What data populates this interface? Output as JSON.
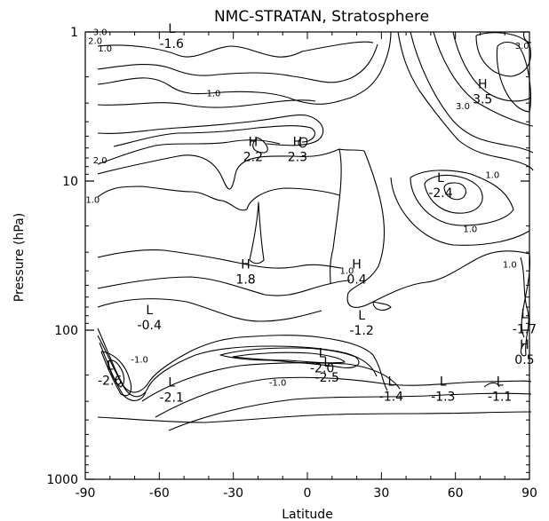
{
  "chart_data": {
    "type": "contour",
    "title": "NMC-STRATAN, Stratosphere",
    "xlabel": "Latitude",
    "ylabel": "Pressure (hPa)",
    "xlim": [
      -90,
      90
    ],
    "ylim": [
      1000,
      1
    ],
    "yscale": "log",
    "x_ticks": [
      -90,
      -60,
      -30,
      0,
      30,
      60,
      90
    ],
    "y_ticks": [
      1,
      10,
      100,
      1000
    ],
    "y_tick_labels": [
      "1",
      "10",
      "100",
      "1000"
    ],
    "extrema": [
      {
        "type": "L",
        "value": "-1.6",
        "lat": -55,
        "p": 1.1
      },
      {
        "type": "H",
        "value": "2.2",
        "lat": -22,
        "p": 6.3
      },
      {
        "type": "H",
        "value": "2.3",
        "lat": -4,
        "p": 6.3
      },
      {
        "type": "H",
        "value": "3.5",
        "lat": 71,
        "p": 2.6
      },
      {
        "type": "L",
        "value": "-2.4",
        "lat": 54,
        "p": 11
      },
      {
        "type": "H",
        "value": "1.8",
        "lat": -25,
        "p": 42
      },
      {
        "type": "H",
        "value": "0.4",
        "lat": 20,
        "p": 42
      },
      {
        "type": "L",
        "value": "-0.4",
        "lat": -64,
        "p": 85
      },
      {
        "type": "L",
        "value": "-1.2",
        "lat": 22,
        "p": 92
      },
      {
        "type": "L",
        "value": "-1.7",
        "lat": 88,
        "p": 90
      },
      {
        "type": "H",
        "value": "0.5",
        "lat": 88,
        "p": 145
      },
      {
        "type": "L",
        "value": "-2.6",
        "lat": -80,
        "p": 200
      },
      {
        "type": "L",
        "value": "-2.0",
        "lat": 6,
        "p": 165
      },
      {
        "type": "L",
        "value": "-2.5",
        "lat": 8,
        "p": 190
      },
      {
        "type": "L",
        "value": "-2.1",
        "lat": -55,
        "p": 260
      },
      {
        "type": "L",
        "value": "-1.4",
        "lat": 34,
        "p": 255
      },
      {
        "type": "L",
        "value": "-1.3",
        "lat": 55,
        "p": 255
      },
      {
        "type": "L",
        "value": "-1.1",
        "lat": 78,
        "p": 255
      }
    ],
    "contour_labels": [
      {
        "value": "3.0",
        "lat": -84,
        "p": 1.05
      },
      {
        "value": "2.0",
        "lat": -86,
        "p": 1.2
      },
      {
        "value": "1.0",
        "lat": -82,
        "p": 1.35
      },
      {
        "value": "1.0",
        "lat": -38,
        "p": 2.7
      },
      {
        "value": "2.0",
        "lat": -84,
        "p": 7.6
      },
      {
        "value": "1.0",
        "lat": -87,
        "p": 14
      },
      {
        "value": "3.0",
        "lat": 63,
        "p": 3.3
      },
      {
        "value": "3.0",
        "lat": 87,
        "p": 1.3
      },
      {
        "value": "1.0",
        "lat": 75,
        "p": 9.5
      },
      {
        "value": "1.0",
        "lat": 66,
        "p": 22
      },
      {
        "value": "1.0",
        "lat": 82,
        "p": 38
      },
      {
        "value": "1.0",
        "lat": 16,
        "p": 42
      },
      {
        "value": "-1.0",
        "lat": -68,
        "p": 165
      },
      {
        "value": "-1.0",
        "lat": -12,
        "p": 235
      }
    ],
    "contour_levels": [
      -3.0,
      -2.0,
      -1.0,
      0.0,
      1.0,
      2.0,
      3.0
    ],
    "grid": false,
    "legend": false
  }
}
